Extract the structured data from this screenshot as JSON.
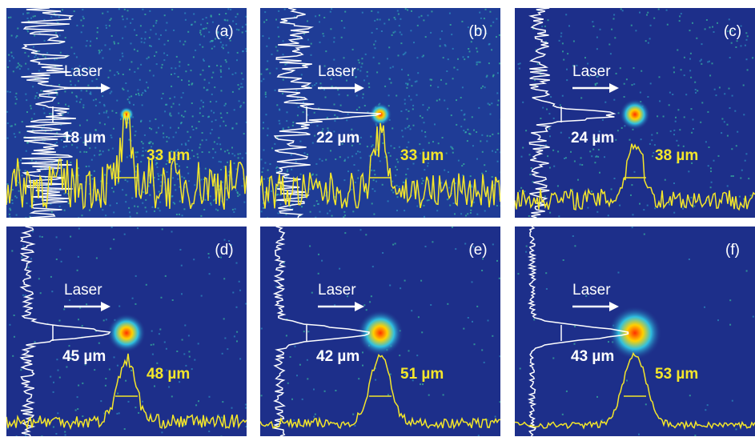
{
  "panels": [
    {
      "label": "(a)",
      "laser": "Laser",
      "vertical_width": "18 µm",
      "horizontal_width": "33 µm"
    },
    {
      "label": "(b)",
      "laser": "Laser",
      "vertical_width": "22 µm",
      "horizontal_width": "33 µm"
    },
    {
      "label": "(c)",
      "laser": "Laser",
      "vertical_width": "24 µm",
      "horizontal_width": "38 µm"
    },
    {
      "label": "(d)",
      "laser": "Laser",
      "vertical_width": "45 µm",
      "horizontal_width": "48 µm"
    },
    {
      "label": "(e)",
      "laser": "Laser",
      "vertical_width": "42 µm",
      "horizontal_width": "51 µm"
    },
    {
      "label": "(f)",
      "laser": "Laser",
      "vertical_width": "43 µm",
      "horizontal_width": "53 µm"
    }
  ]
}
